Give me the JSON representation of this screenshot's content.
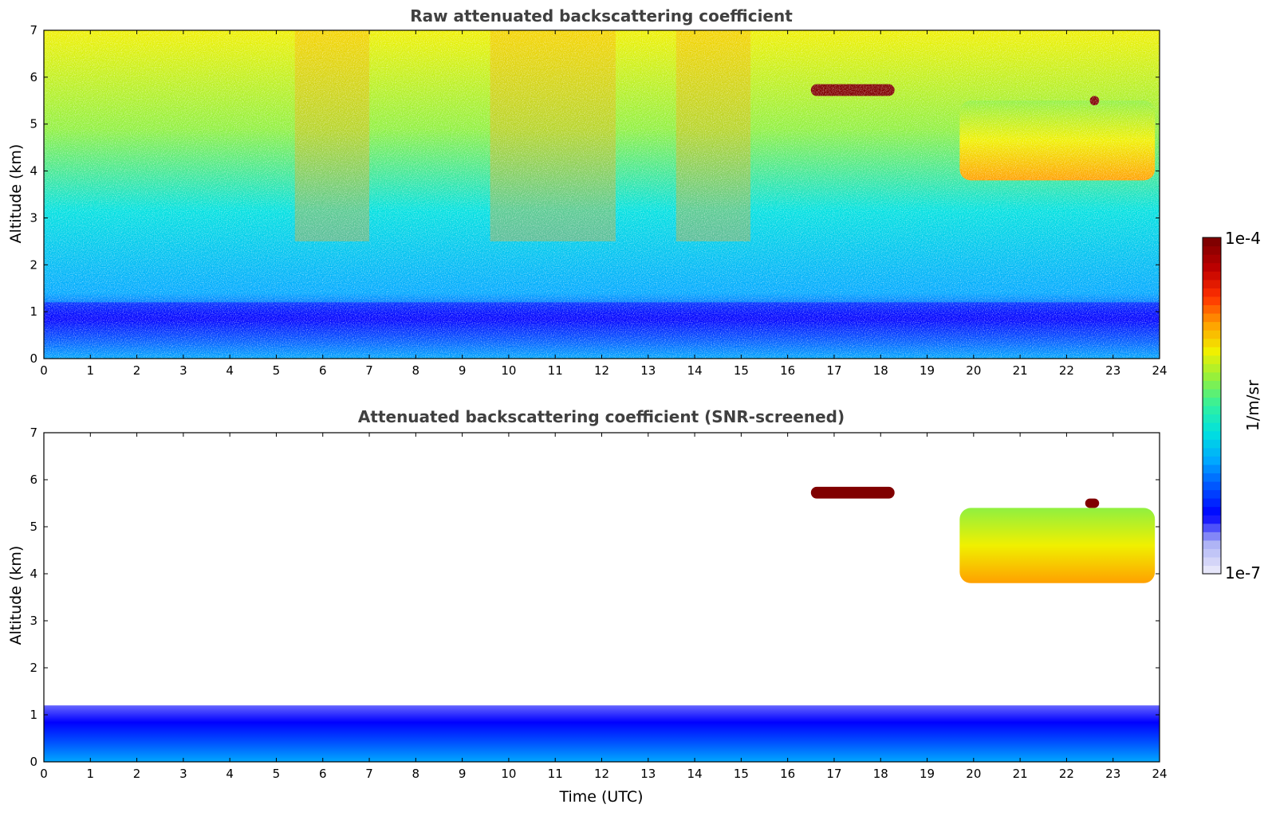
{
  "colors": {
    "cmap": [
      "#e6e6fa",
      "#aab0f5",
      "#0000ff",
      "#0050ff",
      "#00a8ff",
      "#00e0e0",
      "#30f0a0",
      "#90f040",
      "#f0f000",
      "#ffa000",
      "#ff3000",
      "#c00000",
      "#800000"
    ],
    "clip_above": "#000000",
    "axes": "#000000"
  },
  "chart_data": [
    {
      "type": "heatmap",
      "title": "Raw attenuated backscattering coefficient",
      "xlabel": "",
      "ylabel": "Altitude (km)",
      "xlim": [
        0,
        24
      ],
      "ylim": [
        0,
        7
      ],
      "xticks": [
        "0",
        "1",
        "2",
        "3",
        "4",
        "5",
        "6",
        "7",
        "8",
        "9",
        "10",
        "11",
        "12",
        "13",
        "14",
        "15",
        "16",
        "17",
        "18",
        "19",
        "20",
        "21",
        "22",
        "23",
        "24"
      ],
      "yticks": [
        "0",
        "1",
        "2",
        "3",
        "4",
        "5",
        "6",
        "7"
      ],
      "features": [
        {
          "kind": "boundary_layer",
          "time": [
            0,
            24
          ],
          "altitude": [
            0,
            1.2
          ]
        },
        {
          "kind": "cloud",
          "time": [
            16.5,
            18.3
          ],
          "altitude": [
            5.6,
            5.85
          ]
        },
        {
          "kind": "cloud",
          "time": [
            19.7,
            23.9
          ],
          "altitude": [
            3.8,
            5.5
          ]
        },
        {
          "kind": "cloud",
          "time": [
            22.5,
            22.7
          ],
          "altitude": [
            5.4,
            5.6
          ]
        }
      ]
    },
    {
      "type": "heatmap",
      "title": "Attenuated backscattering coefficient (SNR-screened)",
      "xlabel": "Time (UTC)",
      "ylabel": "Altitude (km)",
      "xlim": [
        0,
        24
      ],
      "ylim": [
        0,
        7
      ],
      "xticks": [
        "0",
        "1",
        "2",
        "3",
        "4",
        "5",
        "6",
        "7",
        "8",
        "9",
        "10",
        "11",
        "12",
        "13",
        "14",
        "15",
        "16",
        "17",
        "18",
        "19",
        "20",
        "21",
        "22",
        "23",
        "24"
      ],
      "yticks": [
        "0",
        "1",
        "2",
        "3",
        "4",
        "5",
        "6",
        "7"
      ],
      "features": [
        {
          "kind": "boundary_layer",
          "time": [
            0,
            24
          ],
          "altitude": [
            0,
            1.2
          ]
        },
        {
          "kind": "cloud",
          "time": [
            16.5,
            18.3
          ],
          "altitude": [
            5.6,
            5.85
          ]
        },
        {
          "kind": "cloud",
          "time": [
            19.7,
            23.9
          ],
          "altitude": [
            3.8,
            5.4
          ]
        },
        {
          "kind": "cloud",
          "time": [
            22.4,
            22.7
          ],
          "altitude": [
            5.4,
            5.6
          ]
        }
      ]
    }
  ],
  "colorbar": {
    "max_label": "1e-4",
    "min_label": "1e-7",
    "unit": "1/m/sr"
  }
}
